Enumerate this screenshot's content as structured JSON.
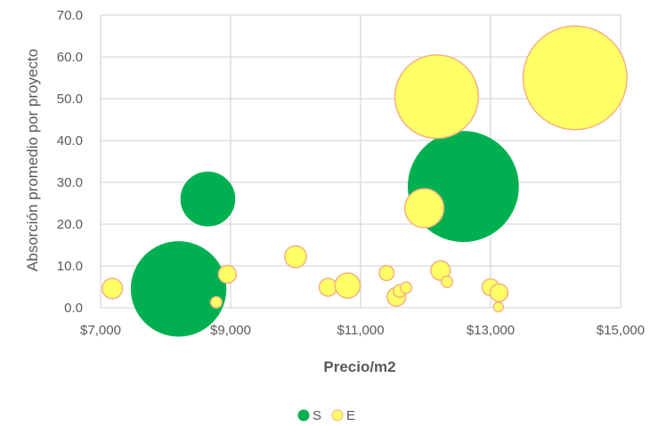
{
  "chart_data": {
    "type": "bubble",
    "xlabel": "Precio/m2",
    "ylabel": "Absorción promedio por proyecto",
    "xlim": [
      7000,
      15000
    ],
    "ylim": [
      0,
      70
    ],
    "x_ticks": [
      "$7,000",
      "$9,000",
      "$11,000",
      "$13,000",
      "$15,000"
    ],
    "y_ticks": [
      "0.0",
      "10.0",
      "20.0",
      "30.0",
      "40.0",
      "50.0",
      "60.0",
      "70.0"
    ],
    "grid": true,
    "legend_position": "bottom",
    "series": [
      {
        "name": "S",
        "color": "#00b050",
        "stroke": "#00b050",
        "points": [
          {
            "x": 8650,
            "y": 26.0,
            "size": 9
          },
          {
            "x": 8200,
            "y": 4.5,
            "size": 28
          },
          {
            "x": 12580,
            "y": 29.0,
            "size": 38
          }
        ]
      },
      {
        "name": "E",
        "color": "#ffff66",
        "stroke": "#f4b183",
        "points": [
          {
            "x": 7180,
            "y": 4.6,
            "size": 1.3
          },
          {
            "x": 8780,
            "y": 1.3,
            "size": 0.4
          },
          {
            "x": 8950,
            "y": 8.0,
            "size": 1.0
          },
          {
            "x": 10000,
            "y": 12.2,
            "size": 1.5
          },
          {
            "x": 10500,
            "y": 4.9,
            "size": 1.0
          },
          {
            "x": 10800,
            "y": 5.3,
            "size": 2.0
          },
          {
            "x": 11400,
            "y": 8.3,
            "size": 0.7
          },
          {
            "x": 11550,
            "y": 2.6,
            "size": 1.1
          },
          {
            "x": 11600,
            "y": 4.0,
            "size": 0.5
          },
          {
            "x": 11700,
            "y": 4.8,
            "size": 0.4
          },
          {
            "x": 11980,
            "y": 23.8,
            "size": 4.8
          },
          {
            "x": 12170,
            "y": 50.5,
            "size": 22
          },
          {
            "x": 12230,
            "y": 8.9,
            "size": 1.2
          },
          {
            "x": 12330,
            "y": 6.2,
            "size": 0.4
          },
          {
            "x": 13000,
            "y": 4.9,
            "size": 0.9
          },
          {
            "x": 13130,
            "y": 3.6,
            "size": 1.0
          },
          {
            "x": 13120,
            "y": 0.2,
            "size": 0.3
          },
          {
            "x": 14300,
            "y": 55.0,
            "size": 34
          }
        ]
      }
    ]
  }
}
